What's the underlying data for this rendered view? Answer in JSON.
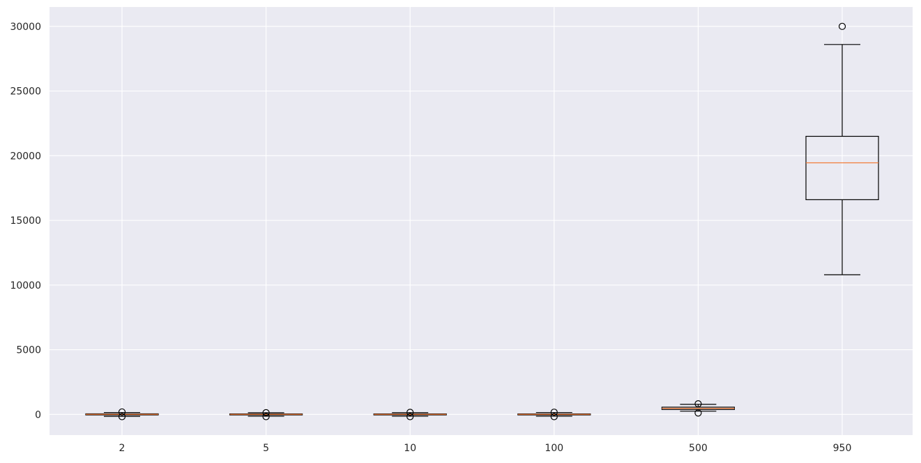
{
  "chart_data": {
    "type": "box",
    "title": "",
    "xlabel": "",
    "ylabel": "",
    "ylim": [
      -1600,
      31500
    ],
    "yticks": [
      0,
      5000,
      10000,
      15000,
      20000,
      25000,
      30000
    ],
    "ytick_labels": [
      "0",
      "5000",
      "10000",
      "15000",
      "20000",
      "25000",
      "30000"
    ],
    "categories": [
      "2",
      "5",
      "10",
      "100",
      "500",
      "950"
    ],
    "boxes": [
      {
        "whisker_low": -150,
        "q1": -40,
        "median": 5,
        "q3": 45,
        "whisker_high": 150,
        "outliers": [
          -170,
          190
        ]
      },
      {
        "whisker_low": -140,
        "q1": -40,
        "median": 5,
        "q3": 40,
        "whisker_high": 130,
        "outliers": [
          -170,
          130
        ]
      },
      {
        "whisker_low": -140,
        "q1": -40,
        "median": 5,
        "q3": 40,
        "whisker_high": 140,
        "outliers": [
          -170,
          160
        ]
      },
      {
        "whisker_low": -140,
        "q1": -40,
        "median": 5,
        "q3": 40,
        "whisker_high": 150,
        "outliers": [
          -170,
          170
        ]
      },
      {
        "whisker_low": 250,
        "q1": 380,
        "median": 470,
        "q3": 560,
        "whisker_high": 780,
        "outliers": [
          110,
          820
        ]
      },
      {
        "whisker_low": 10800,
        "q1": 16600,
        "median": 19450,
        "q3": 21500,
        "whisker_high": 28600,
        "outliers": [
          30000
        ]
      }
    ],
    "grid": true,
    "colors": {
      "background": "#eaeaf2",
      "grid": "#ffffff",
      "box": "#000000",
      "median": "#f27d3a",
      "text": "#262626"
    }
  }
}
